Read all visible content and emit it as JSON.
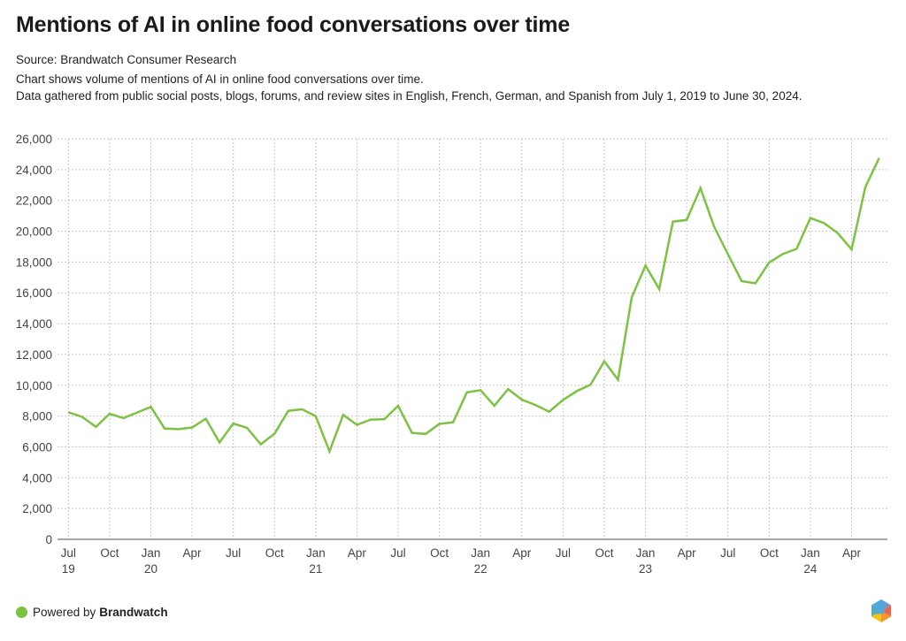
{
  "header": {
    "title": "Mentions of AI in online food conversations over time",
    "source": "Source: Brandwatch Consumer Research",
    "description_1": "Chart shows volume of mentions of AI in online food conversations over time.",
    "description_2": "Data gathered from public social posts, blogs, forums, and review sites in English, French, German, and Spanish from July 1, 2019 to June 30, 2024."
  },
  "footer": {
    "powered_by": "Powered by",
    "brand": "Brandwatch",
    "dot_color": "#7dc242",
    "logo_icon": "brandwatch-hexagon-logo"
  },
  "chart_data": {
    "type": "line",
    "title": "Mentions of AI in online food conversations over time",
    "xlabel": "",
    "ylabel": "",
    "ylim": [
      0,
      26000
    ],
    "yticks": [
      0,
      2000,
      4000,
      6000,
      8000,
      10000,
      12000,
      14000,
      16000,
      18000,
      20000,
      22000,
      24000,
      26000
    ],
    "ytick_labels": [
      "0",
      "2,000",
      "4,000",
      "6,000",
      "8,000",
      "10,000",
      "12,000",
      "14,000",
      "16,000",
      "18,000",
      "20,000",
      "22,000",
      "24,000",
      "26,000"
    ],
    "grid": true,
    "line_color": "#7dc242",
    "x": [
      "2019-07",
      "2019-08",
      "2019-09",
      "2019-10",
      "2019-11",
      "2019-12",
      "2020-01",
      "2020-02",
      "2020-03",
      "2020-04",
      "2020-05",
      "2020-06",
      "2020-07",
      "2020-08",
      "2020-09",
      "2020-10",
      "2020-11",
      "2020-12",
      "2021-01",
      "2021-02",
      "2021-03",
      "2021-04",
      "2021-05",
      "2021-06",
      "2021-07",
      "2021-08",
      "2021-09",
      "2021-10",
      "2021-11",
      "2021-12",
      "2022-01",
      "2022-02",
      "2022-03",
      "2022-04",
      "2022-05",
      "2022-06",
      "2022-07",
      "2022-08",
      "2022-09",
      "2022-10",
      "2022-11",
      "2022-12",
      "2023-01",
      "2023-02",
      "2023-03",
      "2023-04",
      "2023-05",
      "2023-06",
      "2023-07",
      "2023-08",
      "2023-09",
      "2023-10",
      "2023-11",
      "2023-12",
      "2024-01",
      "2024-02",
      "2024-03",
      "2024-04",
      "2024-05",
      "2024-06"
    ],
    "xticks": [
      {
        "index": 0,
        "line1": "Jul",
        "line2": "19"
      },
      {
        "index": 3,
        "line1": "Oct",
        "line2": ""
      },
      {
        "index": 6,
        "line1": "Jan",
        "line2": "20"
      },
      {
        "index": 9,
        "line1": "Apr",
        "line2": ""
      },
      {
        "index": 12,
        "line1": "Jul",
        "line2": ""
      },
      {
        "index": 15,
        "line1": "Oct",
        "line2": ""
      },
      {
        "index": 18,
        "line1": "Jan",
        "line2": "21"
      },
      {
        "index": 21,
        "line1": "Apr",
        "line2": ""
      },
      {
        "index": 24,
        "line1": "Jul",
        "line2": ""
      },
      {
        "index": 27,
        "line1": "Oct",
        "line2": ""
      },
      {
        "index": 30,
        "line1": "Jan",
        "line2": "22"
      },
      {
        "index": 33,
        "line1": "Apr",
        "line2": ""
      },
      {
        "index": 36,
        "line1": "Jul",
        "line2": ""
      },
      {
        "index": 39,
        "line1": "Oct",
        "line2": ""
      },
      {
        "index": 42,
        "line1": "Jan",
        "line2": "23"
      },
      {
        "index": 45,
        "line1": "Apr",
        "line2": ""
      },
      {
        "index": 48,
        "line1": "Jul",
        "line2": ""
      },
      {
        "index": 51,
        "line1": "Oct",
        "line2": ""
      },
      {
        "index": 54,
        "line1": "Jan",
        "line2": "24"
      },
      {
        "index": 57,
        "line1": "Apr",
        "line2": ""
      }
    ],
    "series": [
      {
        "name": "Mentions of AI",
        "values": [
          8250,
          7950,
          7300,
          8150,
          7870,
          8230,
          8600,
          7200,
          7150,
          7260,
          7830,
          6290,
          7520,
          7240,
          6170,
          6860,
          8340,
          8440,
          8000,
          5710,
          8080,
          7430,
          7770,
          7800,
          8670,
          6910,
          6840,
          7490,
          7600,
          9540,
          9680,
          8670,
          9750,
          9070,
          8720,
          8290,
          9050,
          9620,
          10040,
          11560,
          10360,
          15710,
          17770,
          16250,
          20630,
          20730,
          22800,
          20290,
          18510,
          16760,
          16620,
          17970,
          18530,
          18860,
          20860,
          20530,
          19870,
          18820,
          22860,
          24750
        ]
      }
    ]
  }
}
